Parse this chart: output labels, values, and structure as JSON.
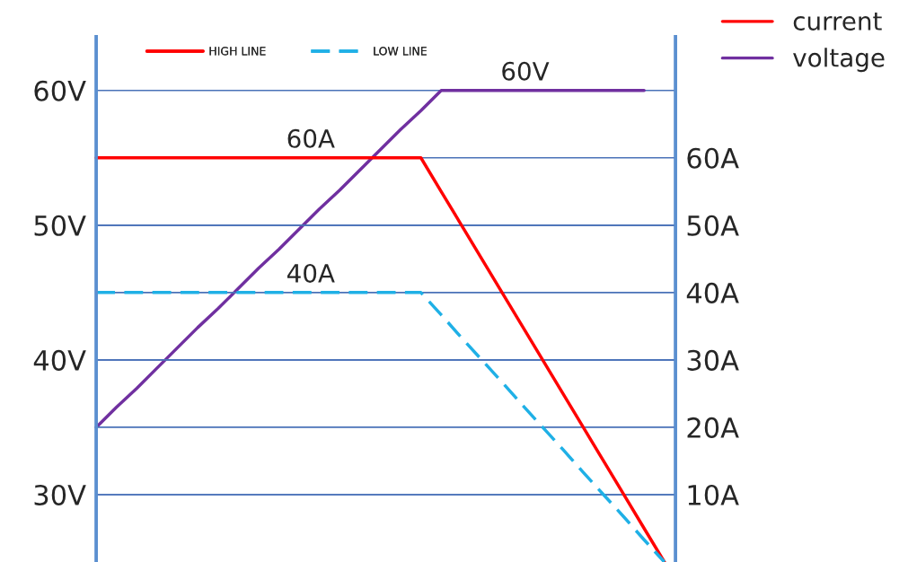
{
  "chart_data": {
    "type": "line",
    "categories": [
      null,
      null,
      null,
      null,
      null,
      null,
      null,
      null,
      null,
      null,
      null,
      null,
      null,
      null,
      null,
      null,
      null,
      null,
      null,
      null,
      null,
      null,
      null,
      null,
      null,
      null,
      null,
      null,
      null
    ],
    "series": [
      {
        "name": "HIGH LINE",
        "color": "#ff0000",
        "axis": "y2",
        "line_style": "solid",
        "values": [
          60,
          60,
          60,
          60,
          60,
          60,
          60,
          60,
          60,
          60,
          60,
          60,
          60,
          60,
          60,
          60,
          60,
          55,
          50,
          45,
          40,
          35,
          30,
          25,
          20,
          15,
          10,
          5,
          0
        ]
      },
      {
        "name": "LOW LINE",
        "color": "#1fb0e6",
        "axis": "y2",
        "line_style": "dashed",
        "values": [
          40,
          40,
          40,
          40,
          40,
          40,
          40,
          40,
          40,
          40,
          40,
          40,
          40,
          40,
          40,
          40,
          40,
          36.7,
          33.3,
          30,
          26.7,
          23.3,
          20,
          16.7,
          13.3,
          10,
          6.7,
          3.3,
          0
        ]
      },
      {
        "name": "voltage",
        "color": "#7030a0",
        "line_style": "solid",
        "values": [
          35,
          36.5,
          37.9,
          39.4,
          40.9,
          42.4,
          43.8,
          45.3,
          46.8,
          48.2,
          49.7,
          51.2,
          52.6,
          54.1,
          55.6,
          57.1,
          58.5,
          60,
          60,
          60,
          60,
          60,
          60,
          60,
          60,
          60,
          60,
          60,
          null
        ]
      }
    ],
    "ylim": [
      25,
      64
    ],
    "yticks": [
      {
        "value": 30,
        "label": "30V"
      },
      {
        "value": 40,
        "label": "40V"
      },
      {
        "value": 50,
        "label": "50V"
      },
      {
        "value": 60,
        "label": "60V"
      }
    ],
    "y2lim": [
      0,
      78
    ],
    "y2ticks": [
      {
        "value": 10,
        "label": "10A"
      },
      {
        "value": 20,
        "label": "20A"
      },
      {
        "value": 30,
        "label": "30A"
      },
      {
        "value": 40,
        "label": "40A"
      },
      {
        "value": 50,
        "label": "50A"
      },
      {
        "value": 60,
        "label": "60A"
      }
    ],
    "grid": "y",
    "legend": "top",
    "annotations": [
      {
        "text": "60V",
        "y": 60
      },
      {
        "text": "60A",
        "y": 55
      },
      {
        "text": "40A",
        "y": 45
      },
      "current"
    ]
  }
}
